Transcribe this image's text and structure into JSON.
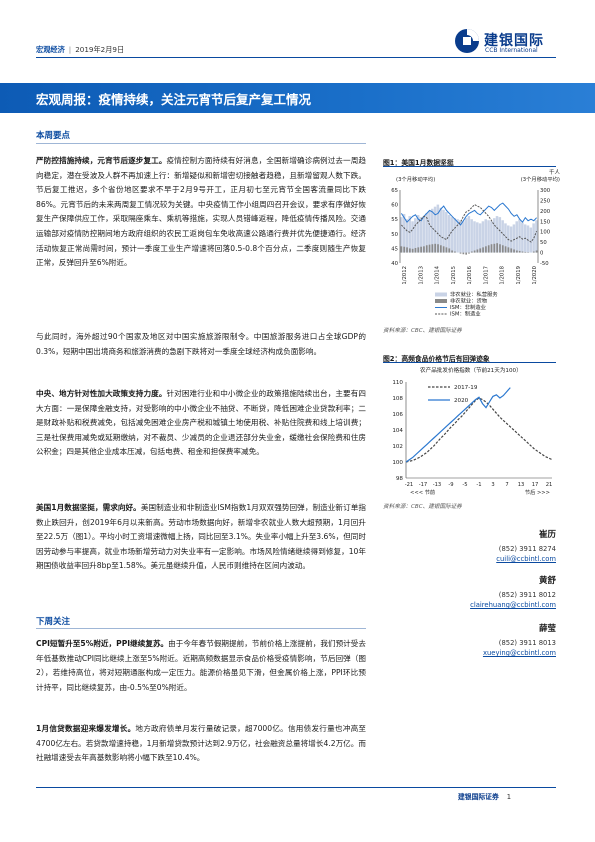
{
  "header": {
    "category": "宏观经济",
    "date": "2019年2月9日",
    "logo_cn": "建银国际",
    "logo_en": "CCB International"
  },
  "title": "宏观周报：疫情持续，关注元宵节后复产复工情况",
  "section1": {
    "heading": "本周要点",
    "p1_lead": "严防控措施持续，元宵节后逐步复工。",
    "p1_body": "疫情控制方面持续有好消息，全国新增确诊病例过去一周趋向稳定，潜在受波及人群不再加速上行：新增疑似和新增密切接触者趋稳，且新增留观人数下跌。节后复工推迟，多个省份地区要求不早于2月9号开工，正月初七至元宵节全国客流量同比下跌86%。元宵节后的未来两周复工情况较为关键。中央疫情工作小组周四召开会议，要求有序做好恢复生产保障供应工作，采取隔座乘车、乘机等措施，实现人员错峰返程，降低疫情传播风险。交通运输部对疫情防控期间地方政府组织的农民工返岗包车免收高速公路通行费并优先便捷通行。经济活动恢复正常尚需时间，预计一季度工业生产增速将回落0.5-0.8个百分点，二季度则随生产恢复正常，反弹回升至6%附近。",
    "p2": "与此同时，海外超过90个国家及地区对中国实施旅游限制令。中国旅游服务进口占全球GDP的0.3%，短期中国出境商务和旅游消费的急剧下跌将对一季度全球经济构成负面影响。",
    "p3_lead": "中央、地方针对性加大政策支持力度。",
    "p3_body": "针对困难行业和中小微企业的政策措施陆续出台，主要有四大方面：一是保障金融支持，对受影响的中小微企业不抽贷、不断贷，降低困难企业贷款利率；二是财政补贴和税费减免，包括减免困难企业房产税和城镇土地使用税、补贴住院费和线上培训费；三是社保费用减免或延期缴纳，对不裁员、少减员的企业退还部分失业金，缓缴社会保险费和住房公积金；四是其他企业成本压减，包括电费、租金和担保费率减免。",
    "p4_lead": "美国1月数据坚挺，需求向好。",
    "p4_body": "美国制造业和非制造业ISM指数1月双双强势回弹，制造业新订单指数止跌回升，创2019年6月以来新高。劳动市场数据向好，新增非农就业人数大超预期，1月回升至22.5万（图1）。平均小时工资增速微幅上扬，同比回至3.1%。失业率小幅上升至3.6%，但同时因劳动参与率提高，就业市场新增劳动力对失业率有一定影响。市场风险情绪继续得到修复，10年期国债收益率回升8bp至1.58%。美元虽继续升值，人民币则维持在区间内波动。"
  },
  "section2": {
    "heading": "下周关注",
    "p1_lead": "CPI短暂升至5%附近，PPI继续复苏。",
    "p1_body": "由于今年春节假期提前，节前价格上涨提前，我们预计受去年低基数推动CPI同比继续上涨至5%附近。近期高频数据显示食品价格受疫情影响，节后回弹（图2），若维持高位，将对短期通胀构成一定压力。能源价格虽见下滑，但金属价格上涨，PPI环比预计持平，同比继续复苏，由-0.5%至0%附近。",
    "p2_lead": "1月信贷数据迎来爆发增长。",
    "p2_body": "地方政府债单月发行量破记录，超7000亿。信用债发行量也冲高至4700亿左右。若贷款增速持稳，1月新增贷款预计达到2.9万亿，社会融资总量将增长4.2万亿。而社融增速受去年高基数影响将小幅下跌至10.4%。"
  },
  "figure1": {
    "title": "图1：美国1月数据坚挺",
    "unit_right": "千人",
    "left_label": "(3个月移动平均)",
    "right_label": "(3个月移动平均)",
    "source": "资料来源：CBC、建银国际证券",
    "legend": [
      "非农就业：私营服务",
      "非农就业：货物",
      "ISM：非制造业",
      "ISM：制造业"
    ],
    "colors": {
      "services": "#c9d3e6",
      "goods": "#8a8a8a",
      "ism_non": "#2b78d0",
      "ism_mfg": "#555555"
    },
    "chart_data": {
      "type": "bar",
      "title": "图1：美国1月数据坚挺",
      "y_left_ticks": [
        "65",
        "60",
        "55",
        "50",
        "45",
        "40"
      ],
      "y_right_ticks": [
        "300",
        "250",
        "200",
        "150",
        "100",
        "50",
        "0",
        "-50"
      ],
      "x_ticks": [
        "1/2012",
        "1/2013",
        "1/2014",
        "1/2015",
        "1/2016",
        "1/2017",
        "1/2018",
        "1/2019",
        "1/2020"
      ],
      "ylim_left": [
        40,
        65
      ],
      "ylim_right": [
        -50,
        300
      ],
      "series": [
        {
          "name": "非农就业：私营服务",
          "axis": "right",
          "kind": "bar",
          "values": [
            170,
            185,
            160,
            175,
            150,
            165,
            180,
            170,
            175,
            190,
            200,
            210,
            220,
            230,
            215,
            205,
            195,
            180,
            170,
            165,
            160,
            155,
            150,
            165,
            175,
            160,
            150,
            145,
            140,
            150,
            160,
            155,
            150,
            165,
            175,
            170,
            155,
            140,
            130,
            125,
            135,
            150,
            160,
            145,
            135,
            130,
            120,
            140,
            155
          ]
        },
        {
          "name": "非农就业：货物",
          "axis": "right",
          "kind": "bar",
          "values": [
            30,
            28,
            25,
            20,
            18,
            22,
            25,
            28,
            30,
            35,
            38,
            40,
            42,
            40,
            35,
            30,
            25,
            20,
            10,
            5,
            0,
            -5,
            -8,
            -10,
            -5,
            5,
            10,
            15,
            20,
            25,
            30,
            35,
            40,
            42,
            45,
            40,
            35,
            30,
            25,
            20,
            15,
            10,
            8,
            5,
            3,
            2,
            0,
            5,
            10
          ]
        },
        {
          "name": "ISM：非制造业",
          "axis": "left",
          "kind": "line",
          "values": [
            57,
            55.5,
            54,
            55,
            56,
            56.5,
            55,
            54.5,
            56,
            57,
            58,
            57.5,
            56.5,
            57,
            58.5,
            59.5,
            58,
            57,
            56,
            55,
            54,
            53,
            54.5,
            56,
            57,
            57.5,
            58,
            57,
            56.5,
            57.5,
            58.5,
            59.5,
            59,
            58,
            59,
            60,
            60.5,
            59.5,
            58.5,
            57,
            56,
            56.5,
            55,
            54,
            55.5,
            54.5,
            55,
            54.5,
            55.5
          ]
        },
        {
          "name": "ISM：制造业",
          "axis": "left",
          "kind": "line",
          "values": [
            53,
            52,
            51,
            50.5,
            51.5,
            53,
            54,
            55,
            56,
            55.5,
            53,
            52,
            51,
            50,
            49,
            48.5,
            48,
            49.5,
            51,
            52,
            53,
            54,
            56,
            57.5,
            58,
            59,
            60,
            59.5,
            59,
            58,
            57,
            56,
            54.5,
            53,
            52,
            51,
            50,
            49,
            48,
            47.5,
            48,
            48.5,
            49,
            48.2,
            48.5,
            47.8,
            47.2,
            48.5,
            50.9
          ]
        }
      ]
    }
  },
  "figure2": {
    "title": "图2：高频食品价格节后有回弹迹象",
    "subtitle": "农产品批发价格指数（节前21天为100）",
    "source": "资料来源：CBC、建银国际证券",
    "colors": {
      "y2017": "#444444",
      "y2020": "#2b78d0"
    },
    "chart_data": {
      "type": "line",
      "title": "图2：高频食品价格节后有回弹迹象",
      "ylabel": "农产品批发价格指数（节前21天为100）",
      "ylim": [
        98,
        110
      ],
      "y_ticks": [
        "110",
        "108",
        "106",
        "104",
        "102",
        "100",
        "98"
      ],
      "x_ticks": [
        "-21",
        "-17",
        "-13",
        "-9",
        "-5",
        "-1",
        "3",
        "7",
        "13",
        "17",
        "21"
      ],
      "x_axis_notes": [
        "<<< 节前",
        "节后 >>>"
      ],
      "x": [
        -21,
        -20,
        -19,
        -18,
        -17,
        -16,
        -15,
        -14,
        -13,
        -12,
        -11,
        -10,
        -9,
        -8,
        -7,
        -6,
        -5,
        -4,
        -3,
        -2,
        -1,
        0,
        1,
        2,
        3,
        4,
        5,
        6,
        7,
        8,
        9,
        10,
        11,
        12,
        13,
        14,
        15,
        16,
        17,
        18,
        19,
        20,
        21
      ],
      "series": [
        {
          "name": "2017-19",
          "values": [
            100,
            100.1,
            100.2,
            100.4,
            100.6,
            100.9,
            101.2,
            101.6,
            102,
            102.5,
            103,
            103.4,
            103.9,
            104.4,
            104.8,
            105.3,
            105.7,
            106.2,
            106.7,
            107.2,
            107.7,
            108,
            107.8,
            107.5,
            107.1,
            106.6,
            106.1,
            105.6,
            105.2,
            104.8,
            104.4,
            104,
            103.6,
            103.2,
            102.8,
            102.4,
            102,
            101.6,
            101.3,
            101,
            100.7,
            100.5,
            100.3
          ]
        },
        {
          "name": "2020",
          "values": [
            100,
            100.3,
            100.6,
            101,
            101.4,
            101.8,
            102.2,
            102.6,
            103,
            103.4,
            103.8,
            104.2,
            104.6,
            105,
            105.4,
            105.8,
            106.2,
            106.6,
            107,
            107.4,
            107.8,
            108.1,
            107.3,
            106.8,
            107.5,
            108.2,
            108.4,
            108,
            108.3,
            108.8,
            109.3,
            null,
            null,
            null,
            null,
            null,
            null,
            null,
            null,
            null,
            null,
            null,
            null
          ]
        }
      ]
    }
  },
  "analysts": [
    {
      "name": "崔历",
      "phone": "(852) 3911 8274",
      "email": "cuili@ccbintl.com"
    },
    {
      "name": "黄舒",
      "phone": "(852) 3911 8012",
      "email": "clairehuang@ccbintl.com"
    },
    {
      "name": "薛莹",
      "phone": "(852) 3911 8013",
      "email": "xueying@ccbintl.com"
    }
  ],
  "footer": {
    "brand": "建银国际证券",
    "page": "1"
  }
}
